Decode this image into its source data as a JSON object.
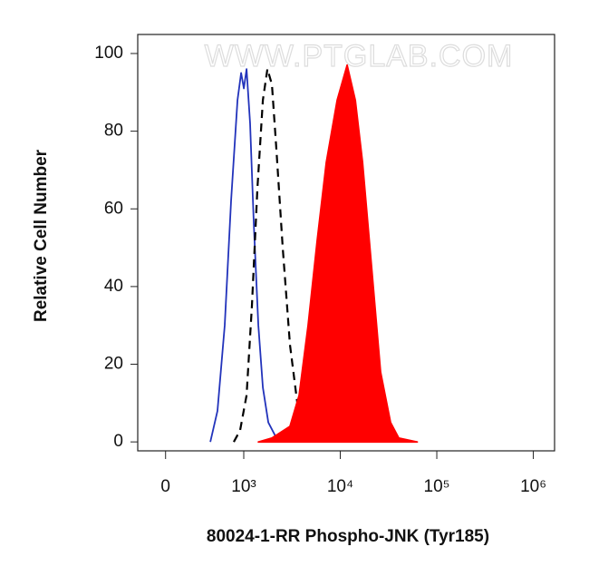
{
  "chart_data": {
    "type": "histogram-overlay",
    "watermark": "WWW.PTGLAB.COM",
    "xlabel": "80024-1-RR Phospho-JNK (Tyr185)",
    "ylabel": "Relative Cell Number",
    "xscale": "biexponential",
    "xlim": [
      -356,
      1660000
    ],
    "ylim": [
      -2.3,
      104.9
    ],
    "xticks": [
      0,
      {
        "value": 1000,
        "label": "10³"
      },
      {
        "value": 10000,
        "label": "10⁴"
      },
      {
        "value": 100000,
        "label": "10⁵"
      },
      {
        "value": 1000000,
        "label": "10⁶"
      }
    ],
    "yticks": [
      0,
      20,
      40,
      60,
      80,
      100
    ],
    "series": [
      {
        "color": "#2233bb",
        "style": "solid",
        "fill": false,
        "x": [
          572,
          664,
          757,
          838,
          920,
          966,
          1002,
          1069,
          1164,
          1270,
          1416,
          1578,
          1795,
          2183,
          2710
        ],
        "values": [
          0,
          8,
          30,
          62,
          88,
          95,
          91,
          96,
          82,
          56,
          30,
          14,
          5,
          1,
          0
        ]
      },
      {
        "color": "#000000",
        "style": "dashed",
        "fill": false,
        "x": [
          873,
          954,
          1069,
          1216,
          1384,
          1578,
          1758,
          1959,
          2183,
          2535,
          3013,
          3589,
          4266,
          5188
        ],
        "values": [
          0,
          3,
          12,
          35,
          65,
          88,
          96,
          92,
          75,
          50,
          25,
          10,
          3,
          0
        ]
      },
      {
        "color": "#ff0000",
        "style": "solid",
        "fill": true,
        "x": [
          1416,
          1959,
          3013,
          3750,
          4645,
          5768,
          7161,
          9290,
          11776,
          14322,
          17010,
          21130,
          26180,
          33190,
          40360,
          62800
        ],
        "values": [
          0,
          1,
          4,
          12,
          30,
          52,
          72,
          88,
          97,
          88,
          72,
          45,
          18,
          5,
          1,
          0
        ]
      }
    ]
  }
}
